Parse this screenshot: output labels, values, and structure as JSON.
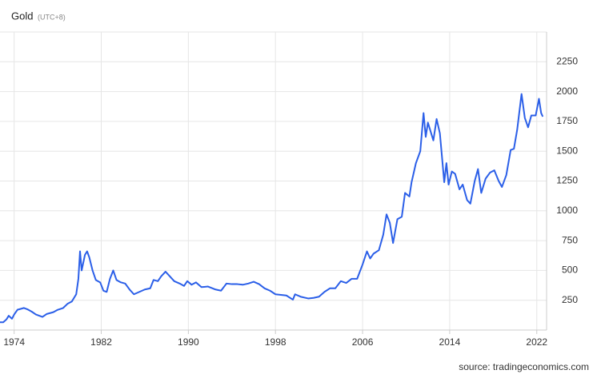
{
  "chart_data": {
    "type": "line",
    "title": "Gold",
    "subtitle": "(UTC+8)",
    "source": "source: tradingeconomics.com",
    "series": [
      {
        "name": "Gold",
        "color": "#2b5fe8",
        "x": [
          1972.7,
          1973.0,
          1973.3,
          1973.5,
          1973.8,
          1974.0,
          1974.3,
          1974.9,
          1975.2,
          1975.6,
          1976.0,
          1976.6,
          1977.0,
          1977.6,
          1978.0,
          1978.5,
          1978.9,
          1979.3,
          1979.7,
          1979.9,
          1980.05,
          1980.2,
          1980.5,
          1980.7,
          1980.9,
          1981.2,
          1981.5,
          1981.9,
          1982.2,
          1982.5,
          1982.8,
          1983.1,
          1983.4,
          1983.8,
          1984.2,
          1984.6,
          1985.0,
          1985.5,
          1986.0,
          1986.5,
          1986.8,
          1987.2,
          1987.5,
          1987.9,
          1988.3,
          1988.7,
          1989.2,
          1989.6,
          1989.9,
          1990.3,
          1990.7,
          1991.2,
          1991.8,
          1992.5,
          1993.0,
          1993.5,
          1994.0,
          1994.5,
          1995.0,
          1995.5,
          1996.0,
          1996.5,
          1997.0,
          1997.5,
          1998.0,
          1998.5,
          1999.0,
          1999.6,
          1999.8,
          2000.3,
          2001.0,
          2001.5,
          2002.0,
          2002.5,
          2003.0,
          2003.5,
          2004.0,
          2004.5,
          2005.0,
          2005.5,
          2006.0,
          2006.4,
          2006.7,
          2007.0,
          2007.5,
          2007.9,
          2008.2,
          2008.5,
          2008.8,
          2009.2,
          2009.6,
          2009.9,
          2010.3,
          2010.5,
          2010.9,
          2011.3,
          2011.6,
          2011.8,
          2012.0,
          2012.3,
          2012.5,
          2012.8,
          2013.1,
          2013.5,
          2013.7,
          2013.9,
          2014.2,
          2014.5,
          2014.9,
          2015.2,
          2015.6,
          2015.9,
          2016.3,
          2016.6,
          2016.9,
          2017.3,
          2017.7,
          2018.1,
          2018.5,
          2018.8,
          2019.2,
          2019.6,
          2019.9,
          2020.2,
          2020.6,
          2020.9,
          2021.2,
          2021.5,
          2021.9,
          2022.2,
          2022.4,
          2022.55
        ],
        "values": [
          65,
          65,
          90,
          120,
          95,
          130,
          170,
          185,
          175,
          155,
          130,
          110,
          135,
          150,
          170,
          185,
          220,
          240,
          300,
          430,
          660,
          500,
          630,
          660,
          610,
          500,
          420,
          400,
          330,
          320,
          430,
          500,
          420,
          400,
          390,
          340,
          300,
          320,
          340,
          350,
          420,
          410,
          450,
          490,
          450,
          410,
          390,
          370,
          410,
          380,
          400,
          360,
          365,
          340,
          330,
          390,
          385,
          385,
          380,
          390,
          405,
          385,
          350,
          330,
          300,
          295,
          290,
          255,
          300,
          280,
          265,
          270,
          280,
          320,
          350,
          350,
          410,
          395,
          430,
          430,
          550,
          660,
          600,
          640,
          670,
          800,
          970,
          900,
          730,
          930,
          950,
          1150,
          1120,
          1240,
          1400,
          1500,
          1820,
          1620,
          1740,
          1650,
          1590,
          1770,
          1650,
          1240,
          1400,
          1220,
          1330,
          1310,
          1180,
          1220,
          1090,
          1060,
          1250,
          1350,
          1150,
          1270,
          1320,
          1340,
          1250,
          1200,
          1300,
          1510,
          1520,
          1680,
          1980,
          1780,
          1700,
          1800,
          1800,
          1940,
          1820,
          1790
        ]
      }
    ],
    "xlim": [
      1972.7,
      2022.9
    ],
    "xticks": [
      1974,
      1982,
      1990,
      1998,
      2006,
      2014,
      2022
    ],
    "ylim": [
      0,
      2500
    ],
    "yticks": [
      250,
      500,
      750,
      1000,
      1250,
      1500,
      1750,
      2000,
      2250
    ],
    "grid": true
  }
}
